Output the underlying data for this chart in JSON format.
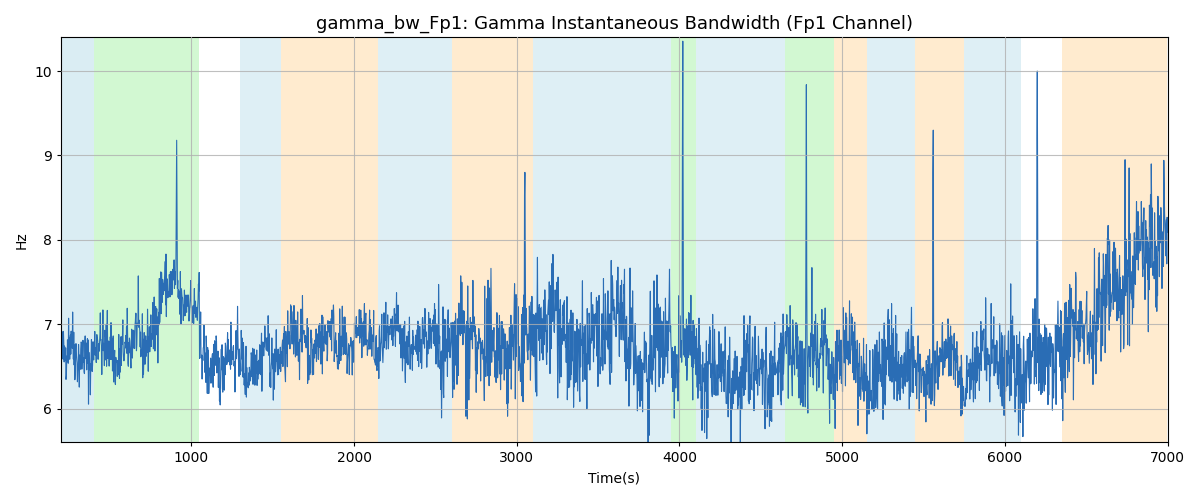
{
  "title": "gamma_bw_Fp1: Gamma Instantaneous Bandwidth (Fp1 Channel)",
  "xlabel": "Time(s)",
  "ylabel": "Hz",
  "xlim": [
    200,
    7000
  ],
  "ylim": [
    5.6,
    10.4
  ],
  "line_color": "#2a6db5",
  "line_width": 0.8,
  "background_bands": [
    {
      "xmin": 200,
      "xmax": 400,
      "color": "#add8e6",
      "alpha": 0.45
    },
    {
      "xmin": 400,
      "xmax": 1050,
      "color": "#90ee90",
      "alpha": 0.4
    },
    {
      "xmin": 1050,
      "xmax": 1300,
      "color": "#ffffff",
      "alpha": 0.0
    },
    {
      "xmin": 1300,
      "xmax": 1550,
      "color": "#add8e6",
      "alpha": 0.4
    },
    {
      "xmin": 1550,
      "xmax": 2150,
      "color": "#ffd9a0",
      "alpha": 0.5
    },
    {
      "xmin": 2150,
      "xmax": 2600,
      "color": "#add8e6",
      "alpha": 0.4
    },
    {
      "xmin": 2600,
      "xmax": 3100,
      "color": "#ffd9a0",
      "alpha": 0.5
    },
    {
      "xmin": 3100,
      "xmax": 3950,
      "color": "#add8e6",
      "alpha": 0.4
    },
    {
      "xmin": 3950,
      "xmax": 4100,
      "color": "#90ee90",
      "alpha": 0.4
    },
    {
      "xmin": 4100,
      "xmax": 4650,
      "color": "#add8e6",
      "alpha": 0.4
    },
    {
      "xmin": 4650,
      "xmax": 4950,
      "color": "#90ee90",
      "alpha": 0.4
    },
    {
      "xmin": 4950,
      "xmax": 5150,
      "color": "#ffd9a0",
      "alpha": 0.5
    },
    {
      "xmin": 5150,
      "xmax": 5450,
      "color": "#add8e6",
      "alpha": 0.4
    },
    {
      "xmin": 5450,
      "xmax": 5750,
      "color": "#ffd9a0",
      "alpha": 0.5
    },
    {
      "xmin": 5750,
      "xmax": 6100,
      "color": "#add8e6",
      "alpha": 0.4
    },
    {
      "xmin": 6100,
      "xmax": 6350,
      "color": "#ffffff",
      "alpha": 0.0
    },
    {
      "xmin": 6350,
      "xmax": 7000,
      "color": "#ffd9a0",
      "alpha": 0.5
    }
  ],
  "seed": 42,
  "yticks": [
    6,
    7,
    8,
    9,
    10
  ],
  "xticks": [
    1000,
    2000,
    3000,
    4000,
    5000,
    6000,
    7000
  ],
  "grid_color": "#b0b0b0",
  "grid_alpha": 0.8,
  "title_fontsize": 13
}
